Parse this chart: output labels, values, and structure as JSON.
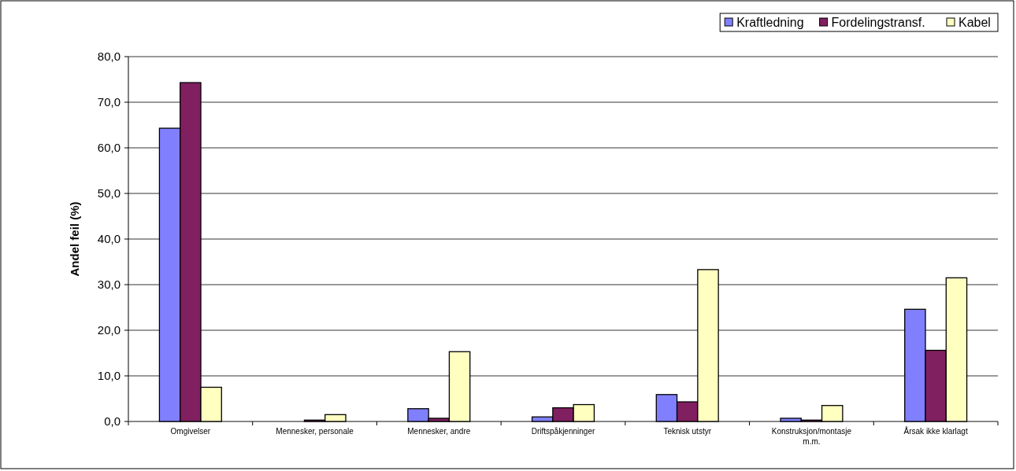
{
  "chart_data": {
    "type": "bar",
    "ylabel": "Andel feil (%)",
    "categories": [
      "Omgivelser",
      "Mennesker, personale",
      "Mennesker, andre",
      "Driftspåkjenninger",
      "Teknisk utstyr",
      "Konstruksjon/montasje m.m.",
      "Årsak ikke klarlagt"
    ],
    "series": [
      {
        "name": "Kraftledning",
        "color": "#8080ff",
        "values": [
          64.3,
          0,
          2.8,
          1.0,
          5.9,
          0.7,
          24.6
        ]
      },
      {
        "name": "Fordelingstransf.",
        "color": "#802060",
        "values": [
          74.3,
          0.3,
          0.7,
          3.0,
          4.3,
          0.3,
          15.6
        ]
      },
      {
        "name": "Kabel",
        "color": "#ffffc0",
        "values": [
          7.5,
          1.5,
          15.3,
          3.7,
          33.3,
          3.5,
          31.5
        ]
      }
    ],
    "ylim": [
      0,
      80
    ],
    "yticks": [
      {
        "value": 0,
        "label": "0,0"
      },
      {
        "value": 10,
        "label": "10,0"
      },
      {
        "value": 20,
        "label": "20,0"
      },
      {
        "value": 30,
        "label": "30,0"
      },
      {
        "value": 40,
        "label": "40,0"
      },
      {
        "value": 50,
        "label": "50,0"
      },
      {
        "value": 60,
        "label": "60,0"
      },
      {
        "value": 70,
        "label": "70,0"
      },
      {
        "value": 80,
        "label": "80,0"
      }
    ],
    "grid": "y",
    "legend": "top right"
  }
}
